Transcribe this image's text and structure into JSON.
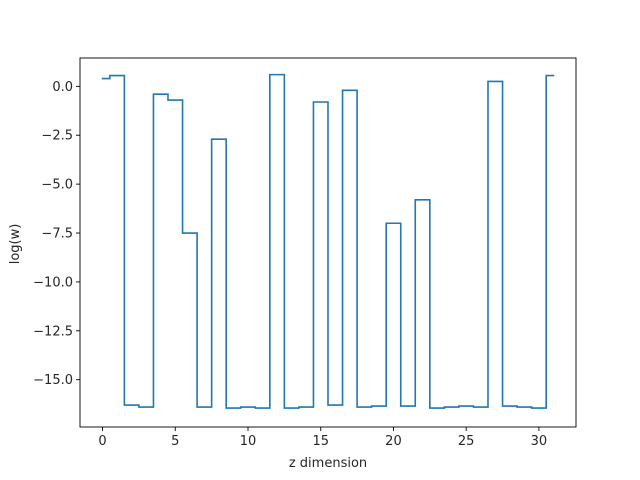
{
  "chart_data": {
    "type": "line",
    "drawstyle": "steps-mid",
    "title": "",
    "xlabel": "z dimension",
    "ylabel": "log(w)",
    "xlim": [
      -1.55,
      32.55
    ],
    "ylim": [
      -17.42,
      1.45
    ],
    "xticks": [
      0,
      5,
      10,
      15,
      20,
      25,
      30
    ],
    "yticks": [
      0.0,
      -2.5,
      -5.0,
      -7.5,
      -10.0,
      -12.5,
      -15.0
    ],
    "xtick_labels": [
      "0",
      "5",
      "10",
      "15",
      "20",
      "25",
      "30"
    ],
    "ytick_labels": [
      "0.0",
      "−2.5",
      "−5.0",
      "−7.5",
      "−10.0",
      "−12.5",
      "−15.0"
    ],
    "line_color": "#1f77b4",
    "grid": false,
    "series": [
      {
        "x": [
          0,
          1,
          2,
          3,
          4,
          5,
          6,
          7,
          8,
          9,
          10,
          11,
          12,
          13,
          14,
          15,
          16,
          17,
          18,
          19,
          20,
          21,
          22,
          23,
          24,
          25,
          26,
          27,
          28,
          29,
          30,
          31
        ],
        "values": [
          0.4,
          0.55,
          -16.3,
          -16.4,
          -0.4,
          -0.7,
          -7.5,
          -16.4,
          -2.7,
          -16.45,
          -16.4,
          -16.45,
          0.6,
          -16.45,
          -16.4,
          -0.8,
          -16.3,
          -0.2,
          -16.4,
          -16.35,
          -7.0,
          -16.35,
          -5.8,
          -16.45,
          -16.4,
          -16.35,
          -16.4,
          0.25,
          -16.35,
          -16.4,
          -16.45,
          0.55
        ]
      }
    ]
  }
}
